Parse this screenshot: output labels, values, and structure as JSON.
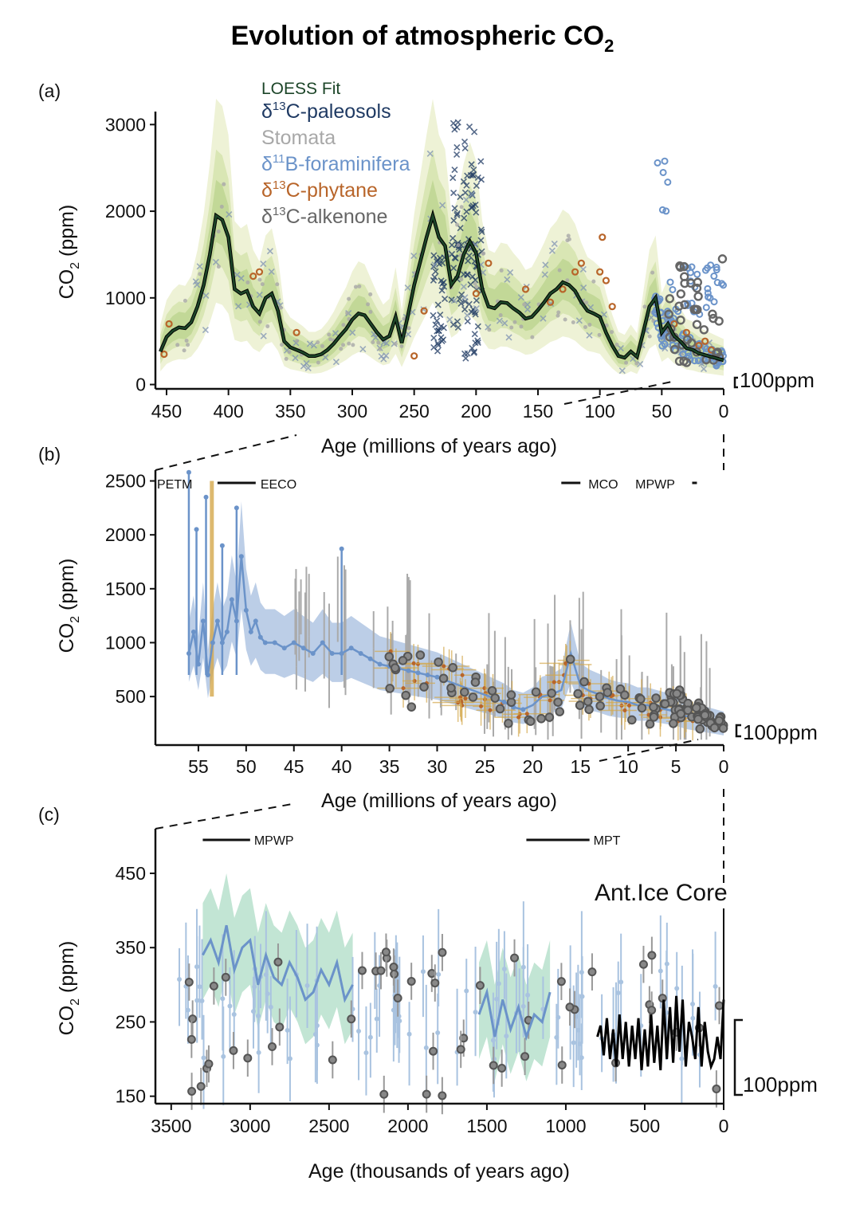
{
  "figure": {
    "title_main": "Evolution of atmospheric CO",
    "title_sub": "2",
    "colors": {
      "loess": "#1c4528",
      "loess_band_outer": "#eef2d6",
      "loess_band_mid": "#d9e6b4",
      "loess_band_inner": "#c2d897",
      "paleosols": "#1f3a63",
      "stomata": "#a8a8a8",
      "foraminifera": "#6b93c9",
      "phytane": "#b8652a",
      "alkenone": "#666666",
      "boron_yellow": "#d4a84b",
      "green_band": "#8fcfb0",
      "ice_core": "#000000"
    }
  },
  "panels": {
    "a": {
      "letter": "(a)",
      "ylabel_main": "CO",
      "ylabel_sub": "2",
      "ylabel_unit": " (ppm)",
      "xlabel": "Age (millions of years ago)",
      "yticks": [
        "0",
        "1000",
        "2000",
        "3000"
      ],
      "xticks": [
        "450",
        "400",
        "350",
        "300",
        "250",
        "200",
        "150",
        "100",
        "50",
        "0"
      ],
      "scalebar": "100ppm",
      "legend": [
        {
          "prefix": "",
          "sup": "",
          "text": "LOESS Fit",
          "color": "#1c4528",
          "small": true
        },
        {
          "prefix": "δ",
          "sup": "13",
          "text": "C-paleosols",
          "color": "#1f3a63"
        },
        {
          "prefix": "",
          "sup": "",
          "text": "Stomata",
          "color": "#a8a8a8"
        },
        {
          "prefix": "δ",
          "sup": "11",
          "text": "B-foraminifera",
          "color": "#6b93c9"
        },
        {
          "prefix": "δ",
          "sup": "13",
          "text": "C-phytane",
          "color": "#b8652a"
        },
        {
          "prefix": "δ",
          "sup": "13",
          "text": "C-alkenone",
          "color": "#666666"
        }
      ]
    },
    "b": {
      "letter": "(b)",
      "ylabel_main": "CO",
      "ylabel_sub": "2",
      "ylabel_unit": " (ppm)",
      "xlabel": "Age (millions of years ago)",
      "yticks": [
        "500",
        "1000",
        "1500",
        "2000",
        "2500"
      ],
      "xticks": [
        "55",
        "50",
        "45",
        "40",
        "35",
        "30",
        "25",
        "20",
        "15",
        "10",
        "5",
        "0"
      ],
      "scalebar": "100ppm",
      "events": [
        "PETM",
        "EECO",
        "MCO",
        "MPWP"
      ]
    },
    "c": {
      "letter": "(c)",
      "ylabel_main": "CO",
      "ylabel_sub": "2",
      "ylabel_unit": " (ppm)",
      "xlabel": "Age (thousands of years ago)",
      "yticks": [
        "150",
        "250",
        "350",
        "450"
      ],
      "xticks": [
        "3500",
        "3000",
        "2500",
        "2000",
        "1500",
        "1000",
        "500",
        "0"
      ],
      "scalebar": "100ppm",
      "events": [
        "MPWP",
        "MPT"
      ],
      "annotation": "Ant.Ice Core"
    }
  },
  "chart_data": [
    {
      "type": "line",
      "panel": "a",
      "x_units": "Ma",
      "y_units": "ppm",
      "xlim": [
        459,
        0
      ],
      "ylim": [
        -50,
        3150
      ],
      "loess_fit": {
        "x": [
          455,
          450,
          445,
          440,
          435,
          430,
          425,
          420,
          415,
          410,
          405,
          400,
          395,
          390,
          385,
          380,
          375,
          370,
          365,
          360,
          355,
          350,
          345,
          340,
          335,
          330,
          325,
          320,
          315,
          310,
          305,
          300,
          295,
          290,
          285,
          280,
          275,
          270,
          265,
          260,
          255,
          250,
          245,
          240,
          235,
          230,
          225,
          220,
          215,
          210,
          205,
          200,
          195,
          190,
          185,
          180,
          175,
          170,
          165,
          160,
          155,
          150,
          145,
          140,
          135,
          130,
          125,
          120,
          115,
          110,
          105,
          100,
          95,
          90,
          85,
          80,
          75,
          70,
          65,
          60,
          55,
          50,
          45,
          40,
          35,
          30,
          25,
          20,
          15,
          10,
          5,
          0
        ],
        "y": [
          380,
          550,
          620,
          660,
          650,
          720,
          900,
          1150,
          1500,
          1950,
          1900,
          1700,
          1100,
          1050,
          1080,
          900,
          820,
          1000,
          1050,
          850,
          500,
          430,
          400,
          370,
          330,
          330,
          350,
          400,
          470,
          560,
          640,
          750,
          820,
          800,
          700,
          600,
          520,
          560,
          780,
          480,
          800,
          1150,
          1420,
          1700,
          1950,
          1700,
          1600,
          1150,
          1250,
          1500,
          1650,
          1520,
          1100,
          900,
          880,
          950,
          940,
          880,
          830,
          760,
          780,
          860,
          950,
          1050,
          1100,
          1180,
          1150,
          1080,
          950,
          850,
          820,
          780,
          600,
          450,
          330,
          310,
          380,
          320,
          600,
          900,
          1000,
          600,
          700,
          560,
          500,
          420,
          400,
          360,
          340,
          320,
          300,
          280
        ]
      },
      "scalebar_ppm": 100
    },
    {
      "type": "line",
      "panel": "b",
      "x_units": "Ma",
      "y_units": "ppm",
      "xlim": [
        59.5,
        0
      ],
      "ylim": [
        50,
        2600
      ],
      "foraminifera_fit": {
        "x": [
          56,
          55.5,
          55,
          54.5,
          54,
          53.5,
          53,
          52.5,
          52,
          51.5,
          51,
          50.5,
          50,
          49.5,
          49,
          48.5,
          48,
          47,
          46,
          45,
          44,
          43,
          42,
          41,
          40,
          39,
          38,
          37,
          36,
          35,
          34,
          33,
          32,
          31,
          30,
          23,
          22,
          21,
          20,
          19,
          18,
          17,
          16,
          15,
          14,
          13,
          12,
          11,
          10,
          9,
          8,
          7,
          6,
          5,
          4,
          3,
          2,
          1,
          0
        ],
        "y": [
          900,
          1100,
          800,
          1200,
          700,
          1000,
          1200,
          1000,
          1100,
          1400,
          1200,
          1800,
          1300,
          1100,
          1200,
          1050,
          1000,
          1000,
          950,
          1000,
          950,
          900,
          1000,
          900,
          900,
          950,
          900,
          850,
          800,
          780,
          760,
          740,
          720,
          700,
          680,
          450,
          400,
          380,
          420,
          500,
          520,
          560,
          900,
          600,
          550,
          520,
          480,
          460,
          450,
          420,
          420,
          400,
          380,
          360,
          320,
          300,
          280,
          260,
          240
        ]
      },
      "events": [
        {
          "label": "PETM",
          "age_Ma": 56
        },
        {
          "label": "EECO",
          "start_Ma": 53,
          "end_Ma": 49
        },
        {
          "label": "MCO",
          "start_Ma": 17,
          "end_Ma": 15
        },
        {
          "label": "MPWP",
          "start_Ma": 3.3,
          "end_Ma": 3.0
        }
      ],
      "scalebar_ppm": 100
    },
    {
      "type": "line",
      "panel": "c",
      "x_units": "ka",
      "y_units": "ppm",
      "xlim": [
        3600,
        0
      ],
      "ylim": [
        140,
        510
      ],
      "boron_fit": {
        "x": [
          3300,
          3250,
          3200,
          3150,
          3100,
          3050,
          3000,
          2950,
          2900,
          2850,
          2800,
          2750,
          2700,
          2650,
          2600,
          2550,
          2500,
          2450,
          2400,
          2350
        ],
        "y": [
          340,
          360,
          330,
          380,
          320,
          350,
          360,
          300,
          340,
          310,
          300,
          330,
          310,
          280,
          290,
          320,
          300,
          330,
          280,
          300
        ]
      },
      "boron_fit_2": {
        "x": [
          1550,
          1500,
          1450,
          1400,
          1350,
          1300,
          1250,
          1200,
          1150,
          1100
        ],
        "y": [
          260,
          290,
          230,
          280,
          240,
          270,
          230,
          260,
          250,
          290
        ]
      },
      "ice_core": {
        "x": [
          800,
          780,
          760,
          740,
          720,
          700,
          680,
          660,
          640,
          620,
          600,
          580,
          560,
          540,
          520,
          500,
          480,
          460,
          440,
          420,
          400,
          380,
          360,
          340,
          320,
          300,
          280,
          260,
          240,
          220,
          200,
          180,
          160,
          140,
          120,
          100,
          80,
          60,
          40,
          20,
          0
        ],
        "y": [
          230,
          245,
          205,
          255,
          200,
          240,
          190,
          260,
          200,
          250,
          190,
          245,
          200,
          255,
          185,
          240,
          190,
          260,
          195,
          245,
          185,
          280,
          200,
          270,
          195,
          285,
          210,
          280,
          190,
          250,
          230,
          200,
          270,
          190,
          250,
          210,
          190,
          200,
          230,
          200,
          280
        ]
      },
      "events": [
        {
          "label": "MPWP",
          "start_ka": 3300,
          "end_ka": 3000
        },
        {
          "label": "MPT",
          "start_ka": 1250,
          "end_ka": 850
        }
      ],
      "scalebar_ppm": 100
    }
  ]
}
